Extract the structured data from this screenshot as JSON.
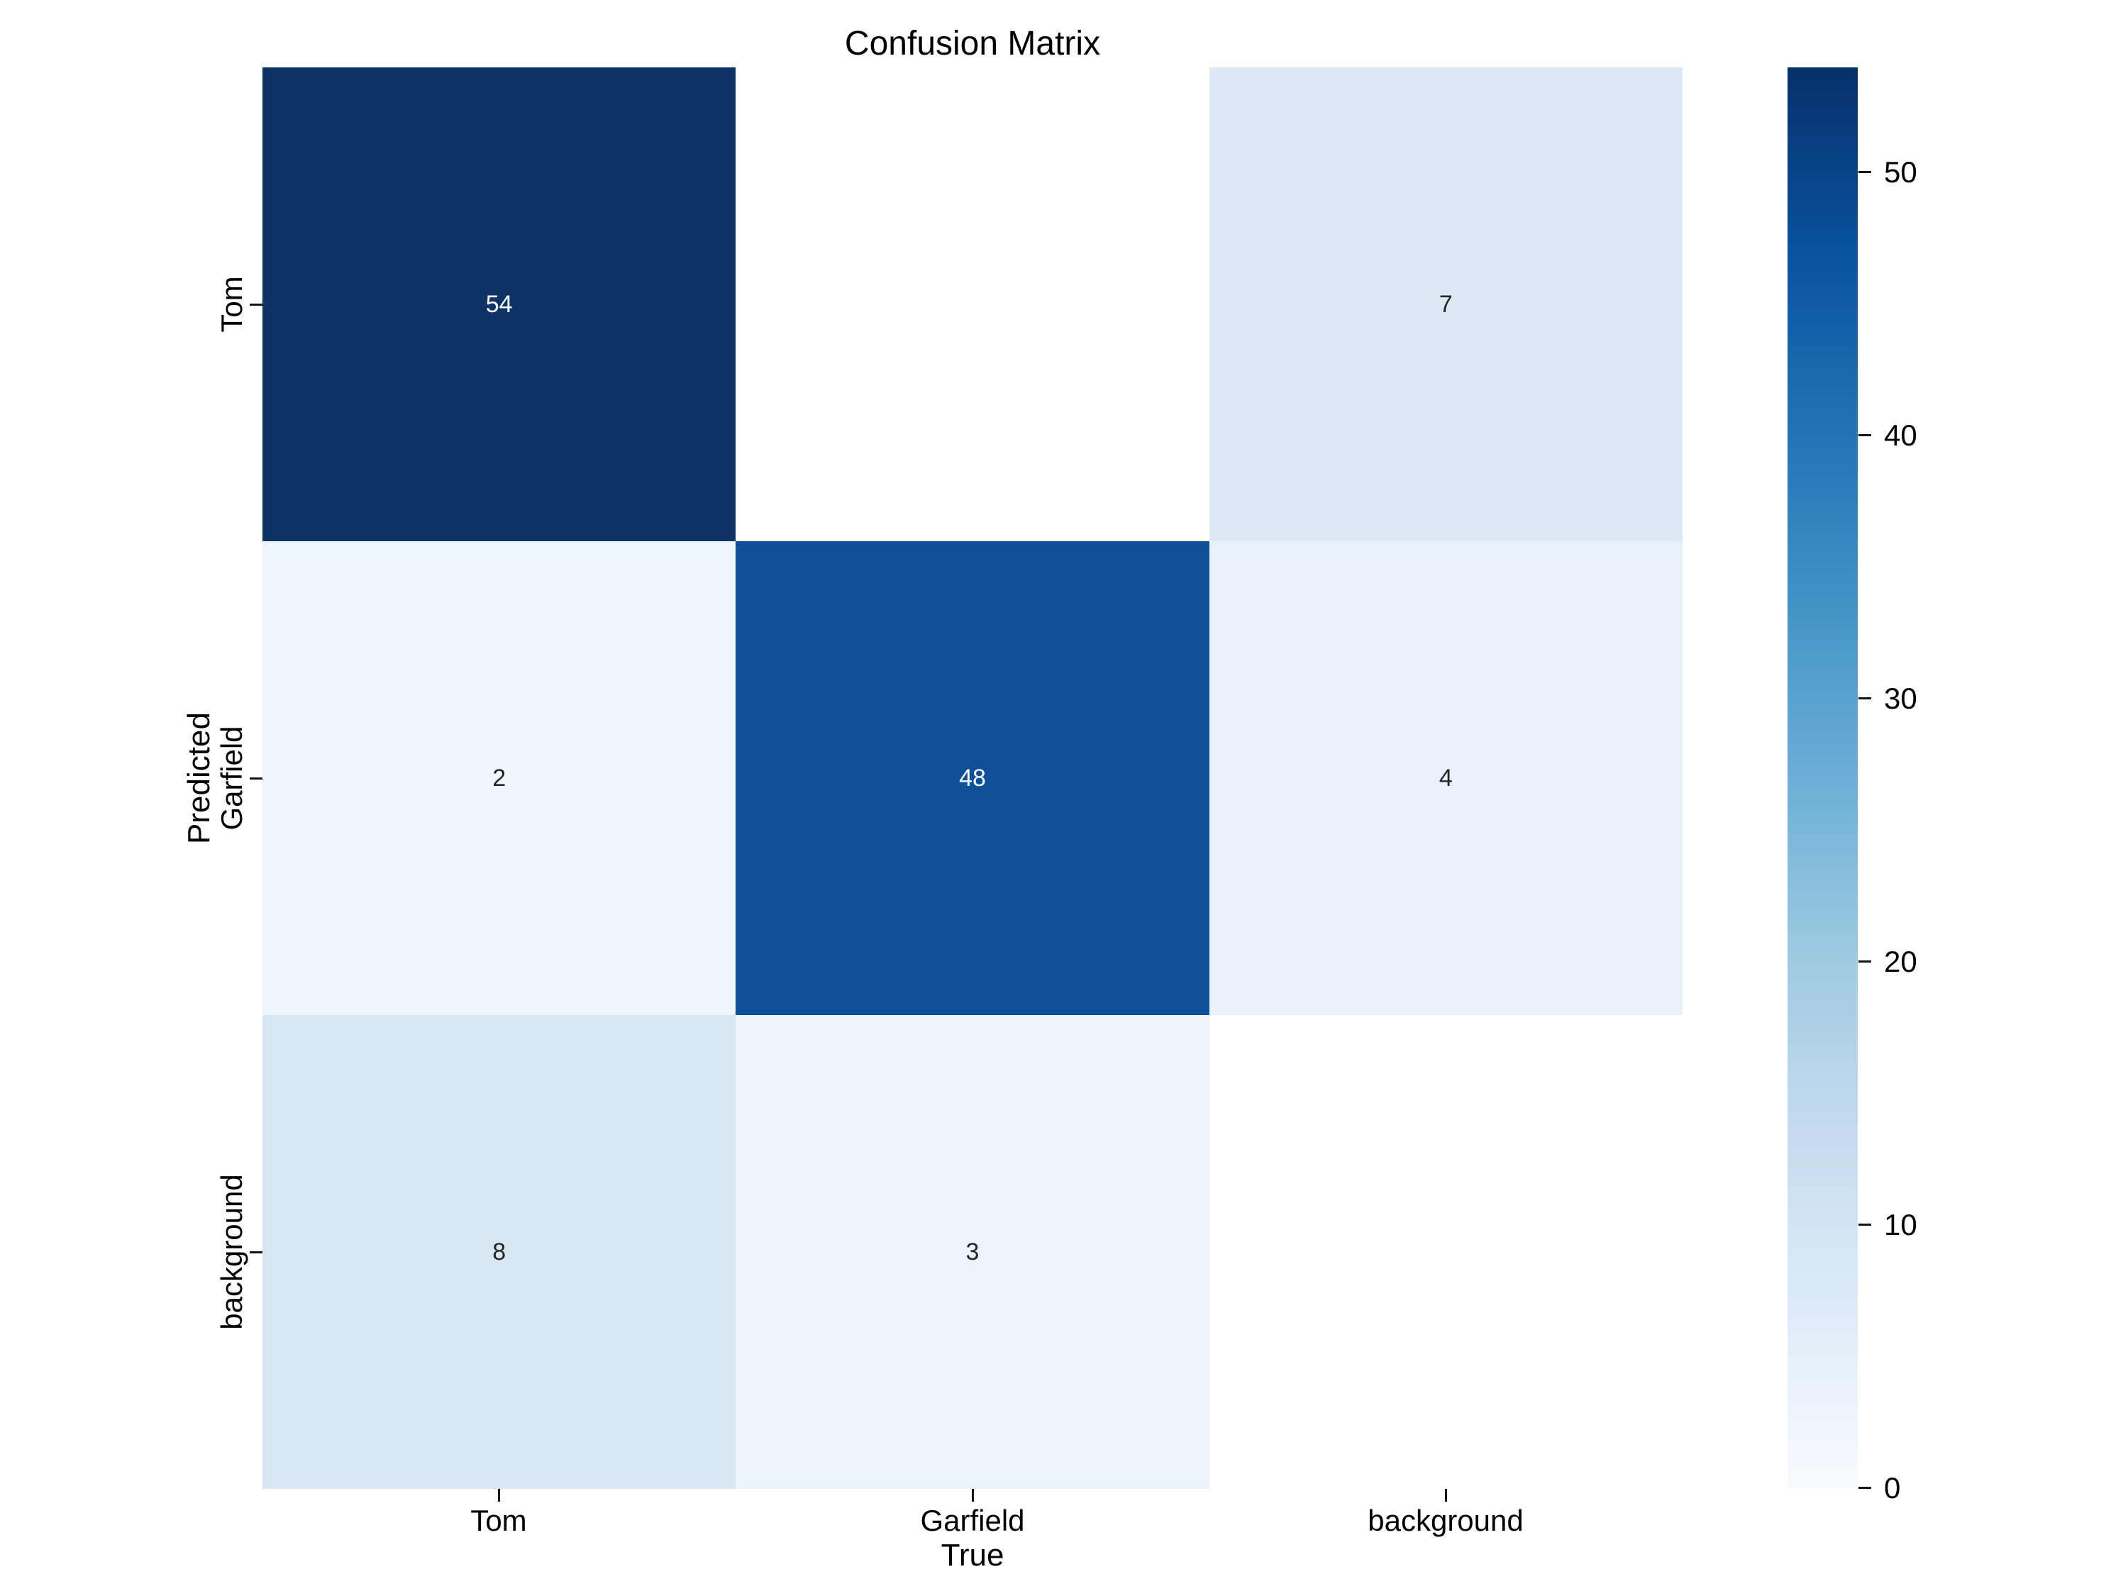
{
  "chart_data": {
    "type": "heatmap",
    "title": "Confusion Matrix",
    "xlabel": "True",
    "ylabel": "Predicted",
    "x_ticklabels": [
      "Tom",
      "Garfield",
      "background"
    ],
    "y_ticklabels": [
      "Tom",
      "Garfield",
      "background"
    ],
    "matrix": [
      [
        54,
        null,
        7
      ],
      [
        2,
        48,
        4
      ],
      [
        8,
        3,
        null
      ]
    ],
    "cells": [
      {
        "value": "54",
        "bg": "#0d3465",
        "fg": "#ffffff"
      },
      {
        "value": "",
        "bg": "#ffffff",
        "fg": "#262626"
      },
      {
        "value": "7",
        "bg": "#ddeaf6",
        "fg": "#262626"
      },
      {
        "value": "2",
        "bg": "#f0f6fd",
        "fg": "#262626"
      },
      {
        "value": "48",
        "bg": "#0e4f99",
        "fg": "#ffffff"
      },
      {
        "value": "4",
        "bg": "#e9f1fa",
        "fg": "#262626"
      },
      {
        "value": "8",
        "bg": "#d9e7f5",
        "fg": "#262626"
      },
      {
        "value": "3",
        "bg": "#edf3fb",
        "fg": "#262626"
      },
      {
        "value": "",
        "bg": "#ffffff",
        "fg": "#262626"
      }
    ],
    "colorbar": {
      "ticks": [
        "50",
        "40",
        "30",
        "20",
        "10",
        "0"
      ],
      "vmin": 0,
      "vmax": 54,
      "colormap": "Blues",
      "gradient_bottom_to_top": [
        "#f7fbff",
        "#deebf7",
        "#c6dbef",
        "#9ecae1",
        "#6baed6",
        "#4292c6",
        "#2171b5",
        "#08519c",
        "#08306b"
      ]
    },
    "legend": "none",
    "grid": false
  }
}
